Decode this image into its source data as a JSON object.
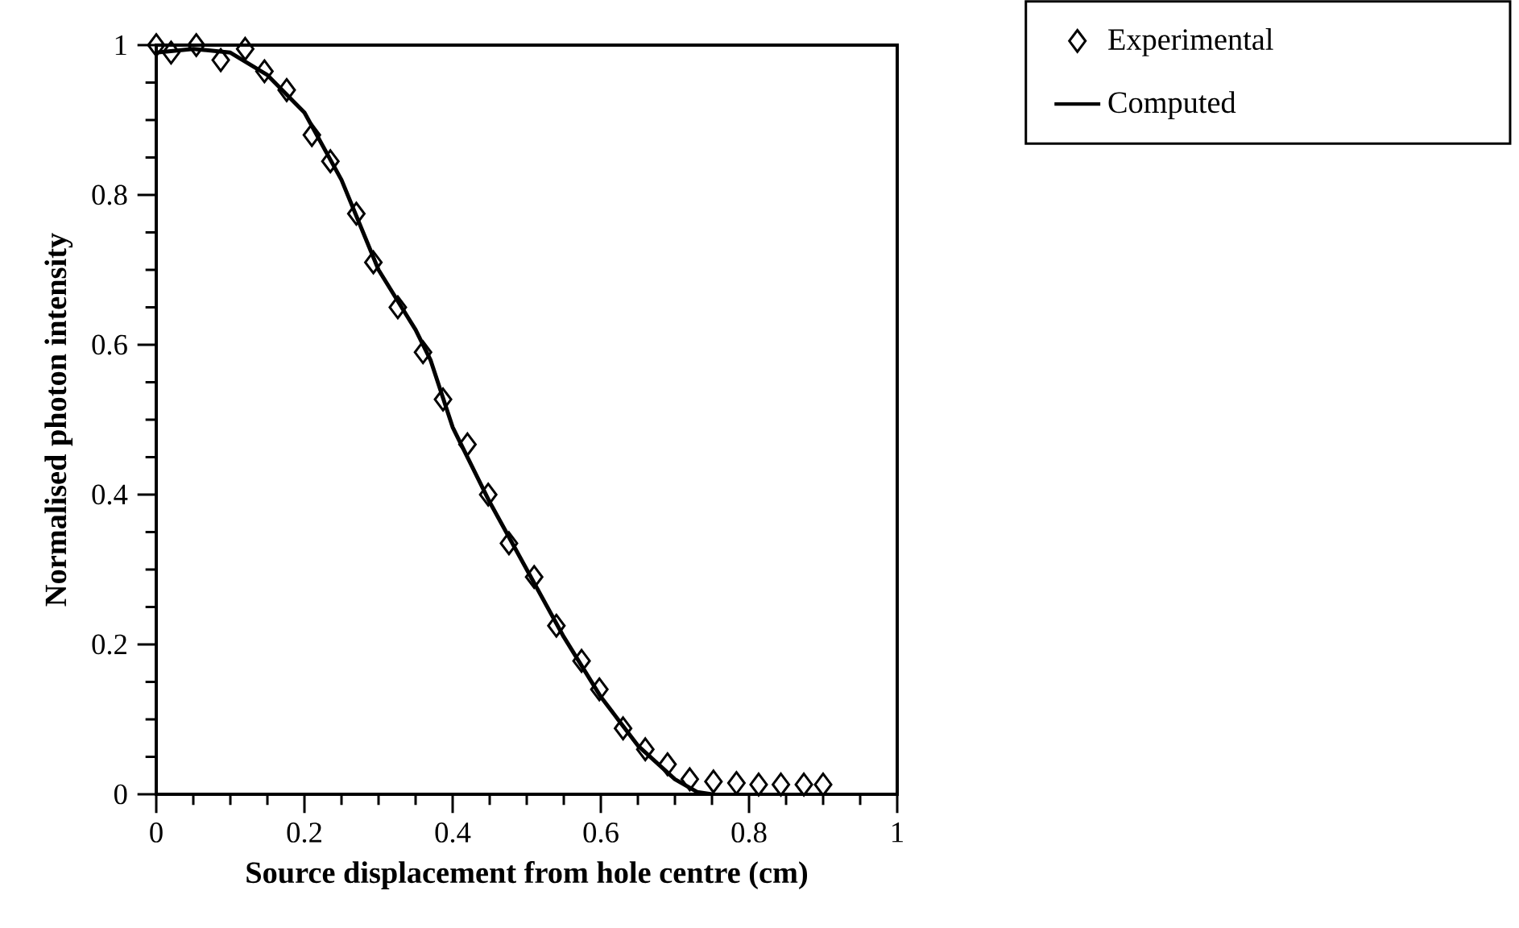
{
  "chart_data": {
    "type": "scatter",
    "xlabel": "Source displacement from hole centre (cm)",
    "ylabel": "Normalised photon intensity",
    "xlim": [
      0,
      1
    ],
    "ylim": [
      0,
      1
    ],
    "xticks": [
      0,
      0.2,
      0.4,
      0.6,
      0.8,
      1
    ],
    "yticks": [
      0,
      0.2,
      0.4,
      0.6,
      0.8,
      1
    ],
    "legend": "top right",
    "grid": false,
    "series": [
      {
        "name": "Experimental",
        "marker": "diamond",
        "color": "#000000",
        "x": [
          0,
          0.02,
          0.054,
          0.087,
          0.12,
          0.146,
          0.176,
          0.21,
          0.235,
          0.27,
          0.293,
          0.326,
          0.36,
          0.387,
          0.42,
          0.448,
          0.476,
          0.51,
          0.54,
          0.574,
          0.598,
          0.63,
          0.66,
          0.69,
          0.72,
          0.752,
          0.783,
          0.813,
          0.843,
          0.874,
          0.9
        ],
        "values": [
          1.0,
          0.99,
          1.0,
          0.98,
          0.995,
          0.965,
          0.94,
          0.88,
          0.845,
          0.775,
          0.71,
          0.65,
          0.59,
          0.527,
          0.467,
          0.4,
          0.335,
          0.29,
          0.225,
          0.178,
          0.14,
          0.088,
          0.06,
          0.04,
          0.02,
          0.017,
          0.015,
          0.013,
          0.013,
          0.013,
          0.013
        ]
      },
      {
        "name": "Computed",
        "type": "line",
        "marker": "none",
        "line_style": "solid",
        "color": "#000000",
        "x": [
          0,
          0.05,
          0.1,
          0.15,
          0.2,
          0.25,
          0.3,
          0.35,
          0.37,
          0.4,
          0.45,
          0.5,
          0.55,
          0.6,
          0.65,
          0.7,
          0.73,
          0.75
        ],
        "values": [
          0.99,
          0.995,
          0.99,
          0.96,
          0.91,
          0.82,
          0.7,
          0.62,
          0.58,
          0.49,
          0.39,
          0.3,
          0.21,
          0.13,
          0.065,
          0.02,
          0.003,
          0
        ]
      }
    ]
  }
}
